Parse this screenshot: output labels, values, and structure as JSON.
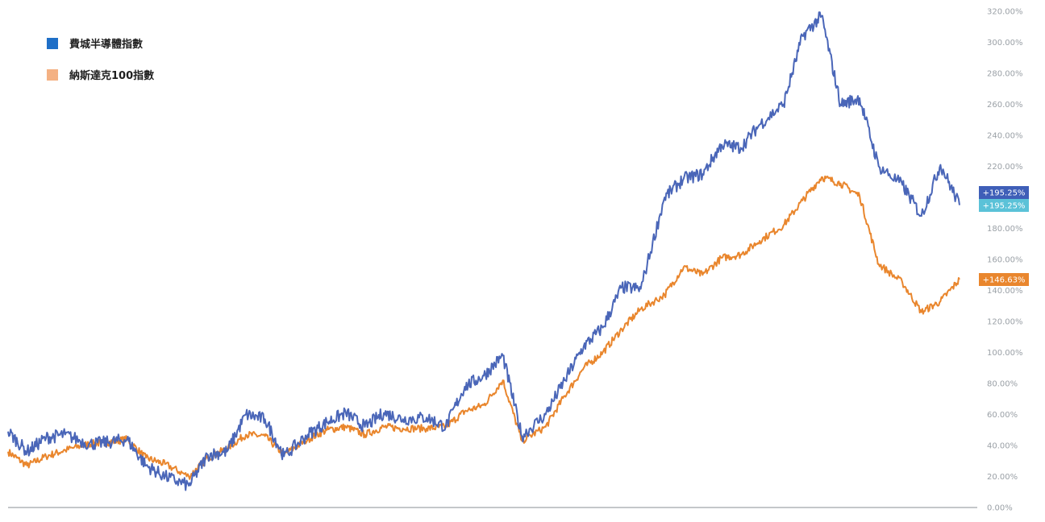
{
  "legend": [
    {
      "name": "費城半導體指數",
      "color": "#1f6fc7"
    },
    {
      "name": "納斯達克100指數",
      "color": "#f4b183"
    }
  ],
  "badges": [
    {
      "text": "+195.25%",
      "color": "#3f5fb8",
      "value": 195.25
    },
    {
      "text": "+195.25%",
      "color": "#5bc2d8",
      "value": 195.25
    },
    {
      "text": "+146.63%",
      "color": "#e9862d",
      "value": 146.63
    }
  ],
  "chart_data": {
    "type": "line",
    "ylim": [
      0,
      320
    ],
    "grid": false,
    "legend_position": "top-left",
    "y_ticks": [
      "0.00%",
      "20.00%",
      "40.00%",
      "60.00%",
      "80.00%",
      "100.00%",
      "120.00%",
      "140.00%",
      "160.00%",
      "180.00%",
      "200.00%",
      "220.00%",
      "240.00%",
      "260.00%",
      "280.00%",
      "300.00%",
      "320.00%"
    ],
    "y_tick_values": [
      0,
      20,
      40,
      60,
      80,
      100,
      120,
      140,
      160,
      180,
      200,
      220,
      240,
      260,
      280,
      300,
      320
    ],
    "series": [
      {
        "name": "費城半導體指數",
        "color": "#4a66b8",
        "x": [
          0,
          4,
          8,
          12,
          17,
          21,
          25,
          29,
          33,
          38,
          42,
          46,
          50,
          54,
          58,
          63,
          67,
          71,
          75,
          79,
          83,
          88,
          92,
          96,
          100,
          104,
          108,
          113,
          117,
          121,
          125,
          129,
          133,
          138,
          142,
          146,
          150,
          154,
          158,
          163,
          167,
          171,
          175,
          179,
          183,
          188,
          192,
          196,
          200
        ],
        "values": [
          49,
          36,
          45,
          47,
          41,
          42,
          44,
          27,
          20,
          14,
          34,
          36,
          60,
          57,
          33,
          47,
          55,
          61,
          52,
          61,
          57,
          58,
          52,
          78,
          85,
          98,
          46,
          60,
          82,
          104,
          116,
          142,
          141,
          200,
          212,
          215,
          234,
          232,
          247,
          260,
          304,
          317,
          260,
          264,
          220,
          208,
          188,
          221,
          195
        ]
      },
      {
        "name": "納斯達克100指數",
        "color": "#e9862d",
        "x": [
          0,
          4,
          8,
          12,
          17,
          21,
          25,
          29,
          33,
          38,
          42,
          46,
          50,
          54,
          58,
          63,
          67,
          71,
          75,
          79,
          83,
          88,
          92,
          96,
          100,
          104,
          108,
          113,
          117,
          121,
          125,
          129,
          133,
          138,
          142,
          146,
          150,
          154,
          158,
          163,
          167,
          171,
          175,
          179,
          183,
          188,
          192,
          196,
          200
        ],
        "values": [
          36,
          27,
          33,
          37,
          41,
          42,
          44,
          32,
          28,
          20,
          32,
          38,
          47,
          46,
          34,
          44,
          50,
          52,
          47,
          52,
          51,
          51,
          52,
          62,
          66,
          82,
          43,
          52,
          72,
          90,
          100,
          115,
          128,
          137,
          155,
          150,
          161,
          163,
          172,
          182,
          198,
          213,
          209,
          201,
          157,
          145,
          126,
          133,
          147
        ]
      }
    ]
  }
}
